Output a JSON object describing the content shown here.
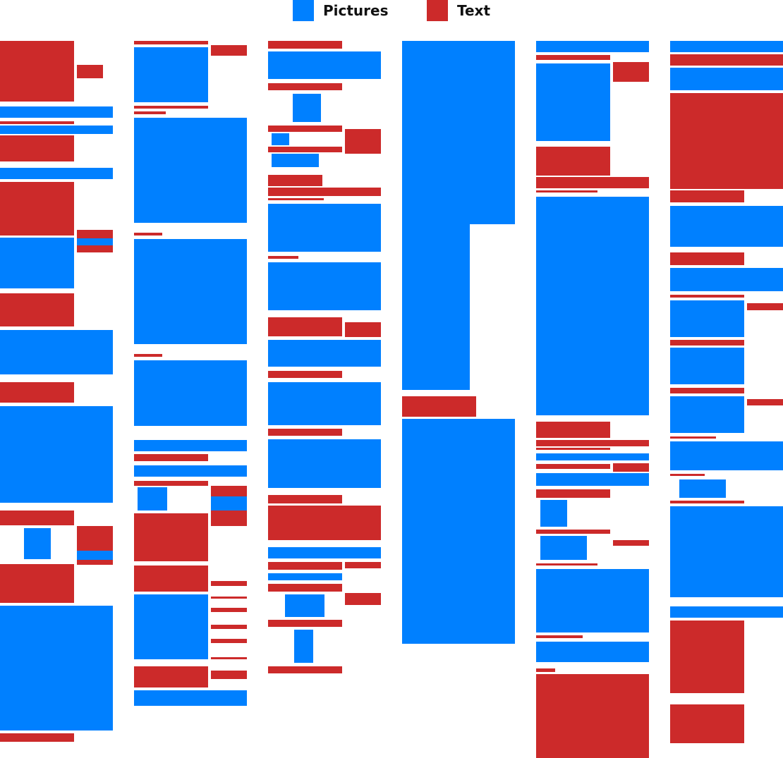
{
  "legend": {
    "pictures_label": "Pictures",
    "text_label": "Text"
  },
  "colors": {
    "picture": "#0080FF",
    "text": "#CC2A2A"
  }
}
